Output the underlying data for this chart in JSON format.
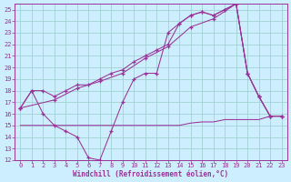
{
  "xlabel": "Windchill (Refroidissement éolien,°C)",
  "bg_color": "#cceeff",
  "grid_color": "#99cccc",
  "line_color": "#993399",
  "xlim": [
    -0.5,
    23.5
  ],
  "ylim": [
    12,
    25.5
  ],
  "xticks": [
    0,
    1,
    2,
    3,
    4,
    5,
    6,
    7,
    8,
    9,
    10,
    11,
    12,
    13,
    14,
    15,
    16,
    17,
    18,
    19,
    20,
    21,
    22,
    23
  ],
  "yticks": [
    12,
    13,
    14,
    15,
    16,
    17,
    18,
    19,
    20,
    21,
    22,
    23,
    24,
    25
  ],
  "series1": [
    [
      0,
      16.5
    ],
    [
      1,
      18.0
    ],
    [
      2,
      16.0
    ],
    [
      3,
      15.0
    ],
    [
      4,
      14.5
    ],
    [
      5,
      14.0
    ],
    [
      6,
      12.2
    ],
    [
      7,
      12.0
    ],
    [
      8,
      14.5
    ],
    [
      9,
      17.0
    ],
    [
      10,
      19.0
    ],
    [
      11,
      19.5
    ],
    [
      12,
      19.5
    ],
    [
      13,
      23.0
    ],
    [
      14,
      23.8
    ],
    [
      15,
      24.5
    ],
    [
      16,
      24.8
    ],
    [
      17,
      24.5
    ],
    [
      18,
      25.0
    ],
    [
      19,
      25.5
    ],
    [
      20,
      19.5
    ],
    [
      21,
      17.5
    ],
    [
      22,
      15.8
    ],
    [
      23,
      15.8
    ]
  ],
  "series2": [
    [
      0,
      16.5
    ],
    [
      1,
      18.0
    ],
    [
      2,
      18.0
    ],
    [
      3,
      17.5
    ],
    [
      4,
      18.0
    ],
    [
      5,
      18.5
    ],
    [
      6,
      18.5
    ],
    [
      7,
      19.0
    ],
    [
      8,
      19.5
    ],
    [
      9,
      19.8
    ],
    [
      10,
      20.5
    ],
    [
      11,
      21.0
    ],
    [
      12,
      21.5
    ],
    [
      13,
      22.0
    ],
    [
      14,
      23.8
    ],
    [
      15,
      24.5
    ],
    [
      16,
      24.8
    ],
    [
      17,
      24.5
    ],
    [
      18,
      25.0
    ],
    [
      19,
      25.5
    ],
    [
      20,
      19.5
    ],
    [
      21,
      17.5
    ],
    [
      22,
      15.8
    ],
    [
      23,
      15.8
    ]
  ],
  "series3": [
    [
      0,
      16.5
    ],
    [
      3,
      17.2
    ],
    [
      5,
      18.2
    ],
    [
      7,
      18.8
    ],
    [
      9,
      19.5
    ],
    [
      11,
      20.8
    ],
    [
      13,
      21.8
    ],
    [
      15,
      23.5
    ],
    [
      17,
      24.2
    ],
    [
      19,
      25.5
    ],
    [
      20,
      19.5
    ],
    [
      21,
      17.5
    ],
    [
      22,
      15.8
    ],
    [
      23,
      15.8
    ]
  ],
  "series4": [
    [
      0,
      15.0
    ],
    [
      1,
      15.0
    ],
    [
      2,
      15.0
    ],
    [
      3,
      15.0
    ],
    [
      4,
      15.0
    ],
    [
      5,
      15.0
    ],
    [
      6,
      15.0
    ],
    [
      7,
      15.0
    ],
    [
      8,
      15.0
    ],
    [
      9,
      15.0
    ],
    [
      10,
      15.0
    ],
    [
      11,
      15.0
    ],
    [
      12,
      15.0
    ],
    [
      13,
      15.0
    ],
    [
      14,
      15.0
    ],
    [
      15,
      15.2
    ],
    [
      16,
      15.3
    ],
    [
      17,
      15.3
    ],
    [
      18,
      15.5
    ],
    [
      19,
      15.5
    ],
    [
      20,
      15.5
    ],
    [
      21,
      15.5
    ],
    [
      22,
      15.8
    ],
    [
      23,
      15.8
    ]
  ]
}
